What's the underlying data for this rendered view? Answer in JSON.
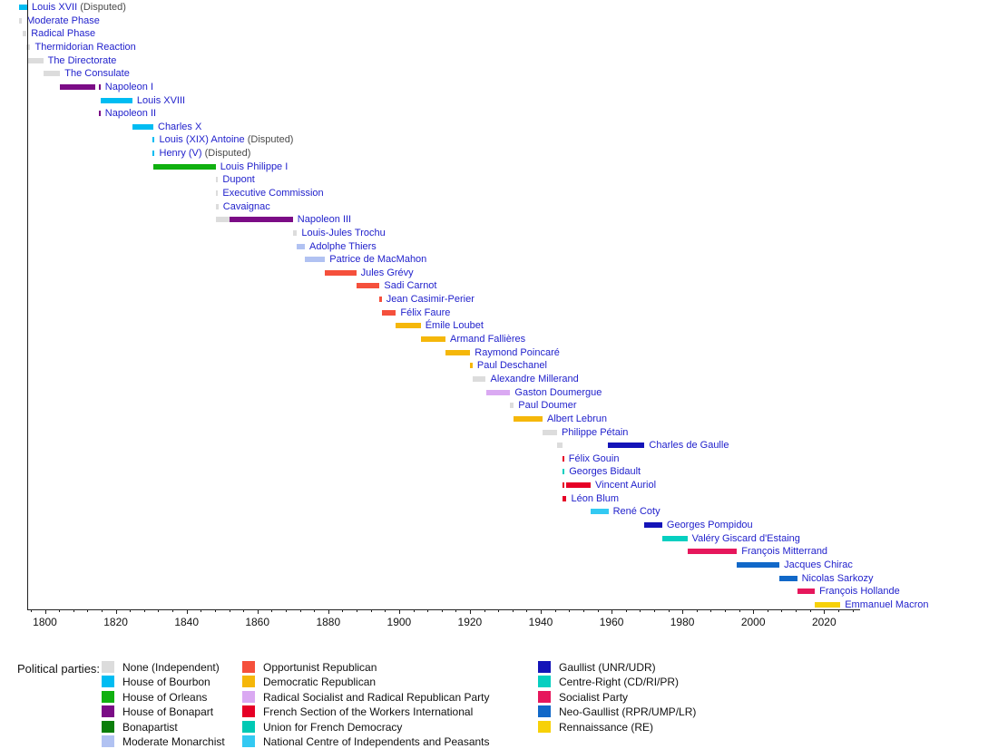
{
  "chart_data": {
    "type": "timeline",
    "description": "Timeline of French heads of state colored by political party",
    "legend_title": "Political parties:",
    "styles": {
      "entry_label_color": "#2222CC",
      "suffix_color": "#4a4a4a",
      "axis_color": "#222222"
    },
    "axis": {
      "x_min": 1795,
      "x_max": 2030,
      "major_ticks": [
        1800,
        1820,
        1840,
        1860,
        1880,
        1900,
        1920,
        1940,
        1960,
        1980,
        2000,
        2020
      ],
      "minor_tick_step": 4,
      "grid": false
    },
    "parties": [
      {
        "id": "none",
        "label": "None (Independent)",
        "color": "#DCDCDC"
      },
      {
        "id": "bourbon",
        "label": "House of Bourbon",
        "color": "#00BCF2"
      },
      {
        "id": "orleans",
        "label": "House of Orleans",
        "color": "#10B010"
      },
      {
        "id": "bonapart",
        "label": "House of Bonapart",
        "color": "#7B0C86"
      },
      {
        "id": "bonapartist",
        "label": "Bonapartist",
        "color": "#0B7E0B"
      },
      {
        "id": "mod-monarchist",
        "label": "Moderate Monarchist",
        "color": "#B1C2F2"
      },
      {
        "id": "opportunist",
        "label": "Opportunist Republican",
        "color": "#F5503C"
      },
      {
        "id": "dem-rep",
        "label": "Democratic Republican",
        "color": "#F5B70A"
      },
      {
        "id": "radical",
        "label": "Radical Socialist and Radical Republican Party",
        "color": "#DAA9F2"
      },
      {
        "id": "sfio",
        "label": "French Section of the Workers International",
        "color": "#E60026"
      },
      {
        "id": "udf",
        "label": "Union for French Democracy",
        "color": "#00C9B4"
      },
      {
        "id": "cnip",
        "label": "National Centre of Independents and Peasants",
        "color": "#33C9F2"
      },
      {
        "id": "gaullist",
        "label": "Gaullist (UNR/UDR)",
        "color": "#1414B8"
      },
      {
        "id": "centre-right",
        "label": "Centre-Right (CD/RI/PR)",
        "color": "#06CFC0"
      },
      {
        "id": "socialist",
        "label": "Socialist Party",
        "color": "#E6175C"
      },
      {
        "id": "neo-gaullist",
        "label": "Neo-Gaullist (RPR/UMP/LR)",
        "color": "#1168C8"
      },
      {
        "id": "re",
        "label": "Rennaissance (RE)",
        "color": "#F7D108"
      }
    ],
    "legend_columns": [
      [
        0,
        1,
        2,
        3,
        4,
        5
      ],
      [
        6,
        7,
        8,
        9,
        10,
        11
      ],
      [
        12,
        13,
        14,
        15,
        16
      ]
    ],
    "entries": [
      {
        "label": "Louis XVII",
        "suffix": " (Disputed)",
        "segments": [
          {
            "start": 1792.6,
            "end": 1795.0,
            "party": "bourbon"
          }
        ]
      },
      {
        "label": "Moderate Phase",
        "segments": [
          {
            "start": 1792.7,
            "end": 1793.5,
            "party": "none"
          }
        ]
      },
      {
        "label": "Radical Phase",
        "segments": [
          {
            "start": 1793.8,
            "end": 1794.8,
            "party": "none"
          }
        ]
      },
      {
        "label": "Thermidorian Reaction",
        "segments": [
          {
            "start": 1794.8,
            "end": 1795.9,
            "party": "none"
          }
        ]
      },
      {
        "label": "The Directorate",
        "segments": [
          {
            "start": 1795.3,
            "end": 1799.5,
            "party": "none"
          }
        ]
      },
      {
        "label": "The Consulate",
        "segments": [
          {
            "start": 1799.5,
            "end": 1804.3,
            "party": "none"
          }
        ]
      },
      {
        "label": "Napoleon I",
        "segments": [
          {
            "start": 1804.3,
            "end": 1814.3,
            "party": "bonapart"
          },
          {
            "start": 1815.2,
            "end": 1815.7,
            "party": "bonapart"
          }
        ]
      },
      {
        "label": "Louis XVIII",
        "segments": [
          {
            "start": 1815.8,
            "end": 1824.7,
            "party": "bourbon"
          }
        ]
      },
      {
        "label": "Napoleon II",
        "segments": [
          {
            "start": 1815.2,
            "end": 1815.7,
            "party": "bonapart"
          }
        ]
      },
      {
        "label": "Charles X",
        "segments": [
          {
            "start": 1824.7,
            "end": 1830.6,
            "party": "bourbon"
          }
        ]
      },
      {
        "label": "Louis (XIX) Antoine",
        "suffix": " (Disputed)",
        "segments": [
          {
            "start": 1830.4,
            "end": 1831.0,
            "party": "bourbon"
          }
        ]
      },
      {
        "label": "Henry (V)",
        "suffix": " (Disputed)",
        "segments": [
          {
            "start": 1830.4,
            "end": 1831.0,
            "party": "bourbon"
          }
        ]
      },
      {
        "label": "Louis Philippe I",
        "segments": [
          {
            "start": 1830.6,
            "end": 1848.2,
            "party": "orleans"
          }
        ]
      },
      {
        "label": "Dupont",
        "segments": [
          {
            "start": 1848.3,
            "end": 1848.9,
            "party": "none"
          }
        ]
      },
      {
        "label": "Executive Commission",
        "segments": [
          {
            "start": 1848.3,
            "end": 1848.9,
            "party": "none"
          }
        ]
      },
      {
        "label": "Cavaignac",
        "segments": [
          {
            "start": 1848.4,
            "end": 1849.0,
            "party": "none"
          }
        ]
      },
      {
        "label": "Napoleon III",
        "segments": [
          {
            "start": 1848.2,
            "end": 1852.2,
            "party": "none"
          },
          {
            "start": 1852.2,
            "end": 1870.0,
            "party": "bonapart"
          }
        ]
      },
      {
        "label": "Louis-Jules Trochu",
        "segments": [
          {
            "start": 1870.0,
            "end": 1871.2,
            "party": "none"
          }
        ]
      },
      {
        "label": "Adolphe Thiers",
        "segments": [
          {
            "start": 1871.2,
            "end": 1873.4,
            "party": "mod-monarchist"
          }
        ]
      },
      {
        "label": "Patrice de MacMahon",
        "segments": [
          {
            "start": 1873.4,
            "end": 1879.1,
            "party": "mod-monarchist"
          }
        ]
      },
      {
        "label": "Jules Grévy",
        "segments": [
          {
            "start": 1879.1,
            "end": 1887.9,
            "party": "opportunist"
          }
        ]
      },
      {
        "label": "Sadi Carnot",
        "segments": [
          {
            "start": 1887.9,
            "end": 1894.5,
            "party": "opportunist"
          }
        ]
      },
      {
        "label": "Jean Casimir-Perier",
        "segments": [
          {
            "start": 1894.5,
            "end": 1895.1,
            "party": "opportunist"
          }
        ]
      },
      {
        "label": "Félix Faure",
        "segments": [
          {
            "start": 1895.1,
            "end": 1899.1,
            "party": "opportunist"
          }
        ]
      },
      {
        "label": "Émile Loubet",
        "segments": [
          {
            "start": 1899.1,
            "end": 1906.1,
            "party": "dem-rep"
          }
        ]
      },
      {
        "label": "Armand Fallières",
        "segments": [
          {
            "start": 1906.1,
            "end": 1913.1,
            "party": "dem-rep"
          }
        ]
      },
      {
        "label": "Raymond Poincaré",
        "segments": [
          {
            "start": 1913.1,
            "end": 1920.1,
            "party": "dem-rep"
          }
        ]
      },
      {
        "label": "Paul Deschanel",
        "segments": [
          {
            "start": 1920.1,
            "end": 1920.75,
            "party": "dem-rep"
          }
        ]
      },
      {
        "label": "Alexandre Millerand",
        "segments": [
          {
            "start": 1920.8,
            "end": 1924.5,
            "party": "none"
          }
        ]
      },
      {
        "label": "Gaston Doumergue",
        "segments": [
          {
            "start": 1924.5,
            "end": 1931.4,
            "party": "radical"
          }
        ]
      },
      {
        "label": "Paul Doumer",
        "segments": [
          {
            "start": 1931.4,
            "end": 1932.4,
            "party": "none"
          }
        ]
      },
      {
        "label": "Albert Lebrun",
        "segments": [
          {
            "start": 1932.4,
            "end": 1940.5,
            "party": "dem-rep"
          }
        ]
      },
      {
        "label": "Philippe Pétain",
        "segments": [
          {
            "start": 1940.5,
            "end": 1944.6,
            "party": "none"
          }
        ]
      },
      {
        "label": "Charles de Gaulle",
        "segments": [
          {
            "start": 1944.6,
            "end": 1946.1,
            "party": "none"
          },
          {
            "start": 1959.0,
            "end": 1969.3,
            "party": "gaullist"
          }
        ]
      },
      {
        "label": "Félix Gouin",
        "segments": [
          {
            "start": 1946.1,
            "end": 1946.6,
            "party": "sfio"
          }
        ]
      },
      {
        "label": "Georges Bidault",
        "segments": [
          {
            "start": 1946.2,
            "end": 1946.7,
            "party": "centre-right"
          }
        ]
      },
      {
        "label": "Vincent Auriol",
        "segments": [
          {
            "start": 1946.1,
            "end": 1946.6,
            "party": "sfio"
          },
          {
            "start": 1947.1,
            "end": 1954.1,
            "party": "sfio"
          }
        ]
      },
      {
        "label": "Léon Blum",
        "segments": [
          {
            "start": 1946.1,
            "end": 1947.3,
            "party": "sfio"
          }
        ]
      },
      {
        "label": "René Coty",
        "segments": [
          {
            "start": 1954.1,
            "end": 1959.1,
            "party": "cnip"
          }
        ]
      },
      {
        "label": "Georges Pompidou",
        "segments": [
          {
            "start": 1969.3,
            "end": 1974.3,
            "party": "gaullist"
          }
        ]
      },
      {
        "label": "Valéry Giscard d'Estaing",
        "segments": [
          {
            "start": 1974.3,
            "end": 1981.4,
            "party": "centre-right"
          }
        ]
      },
      {
        "label": "François Mitterrand",
        "segments": [
          {
            "start": 1981.4,
            "end": 1995.4,
            "party": "socialist"
          }
        ]
      },
      {
        "label": "Jacques Chirac",
        "segments": [
          {
            "start": 1995.4,
            "end": 2007.4,
            "party": "neo-gaullist"
          }
        ]
      },
      {
        "label": "Nicolas Sarkozy",
        "segments": [
          {
            "start": 2007.4,
            "end": 2012.4,
            "party": "neo-gaullist"
          }
        ]
      },
      {
        "label": "François Hollande",
        "segments": [
          {
            "start": 2012.4,
            "end": 2017.4,
            "party": "socialist"
          }
        ]
      },
      {
        "label": "Emmanuel Macron",
        "segments": [
          {
            "start": 2017.4,
            "end": 2024.6,
            "party": "re"
          }
        ]
      }
    ]
  }
}
